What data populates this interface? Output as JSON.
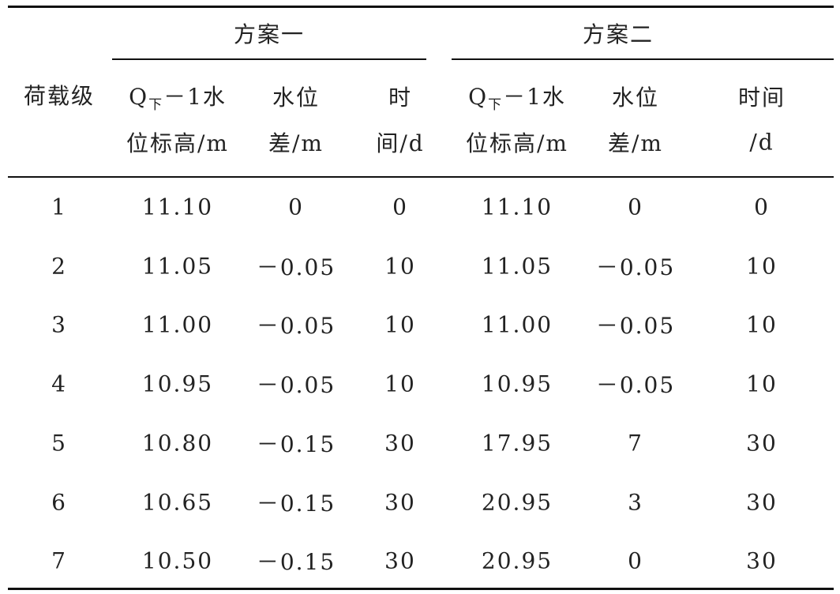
{
  "table": {
    "groups": [
      "方案一",
      "方案二"
    ],
    "columns": [
      {
        "lines": [
          "荷载级"
        ]
      },
      {
        "lines": [
          [
            "Q",
            "下",
            "－1水"
          ],
          "位标高/m"
        ]
      },
      {
        "lines": [
          "水位",
          "差/m"
        ]
      },
      {
        "lines": [
          "时",
          "间/d"
        ]
      },
      {
        "lines": [
          [
            "Q",
            "下",
            "－1水"
          ],
          "位标高/m"
        ]
      },
      {
        "lines": [
          "水位",
          "差/m"
        ]
      },
      {
        "lines": [
          "时间",
          "/d"
        ]
      }
    ],
    "rows": [
      [
        "1",
        "11.10",
        "0",
        "0",
        "11.10",
        "0",
        "0"
      ],
      [
        "2",
        "11.05",
        "－0.05",
        "10",
        "11.05",
        "－0.05",
        "10"
      ],
      [
        "3",
        "11.00",
        "－0.05",
        "10",
        "11.00",
        "－0.05",
        "10"
      ],
      [
        "4",
        "10.95",
        "－0.05",
        "10",
        "10.95",
        "－0.05",
        "10"
      ],
      [
        "5",
        "10.80",
        "－0.15",
        "30",
        "17.95",
        "7",
        "30"
      ],
      [
        "6",
        "10.65",
        "－0.15",
        "30",
        "20.95",
        "3",
        "30"
      ],
      [
        "7",
        "10.50",
        "－0.15",
        "30",
        "20.95",
        "0",
        "30"
      ]
    ]
  }
}
